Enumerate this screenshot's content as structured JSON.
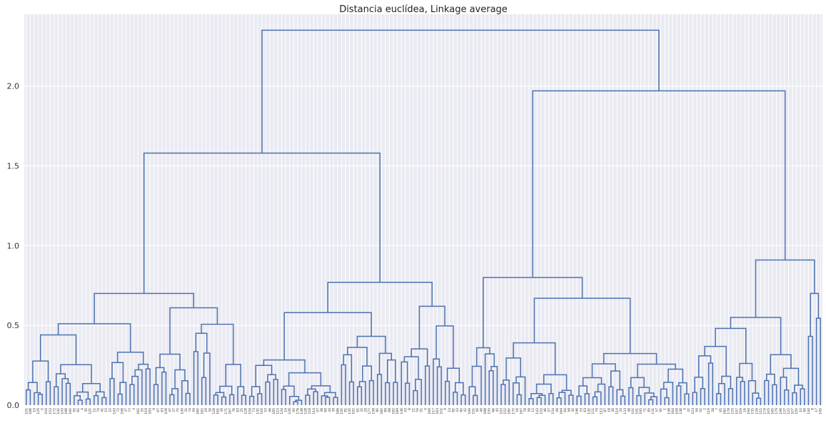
{
  "chart_data": {
    "type": "dendrogram",
    "title": "Distancia euclídea, Linkage average",
    "xlabel": "",
    "ylabel": "",
    "ylim": [
      0,
      2.45
    ],
    "y_ticks": [
      0.0,
      0.5,
      1.0,
      1.5,
      2.0
    ],
    "y_tick_labels": [
      "0.0",
      "0.5",
      "1.0",
      "1.5",
      "2.0"
    ],
    "grid": true,
    "link_color": "#4c72b0",
    "background_color": "#eaeaf2",
    "grid_color": "#ffffff",
    "leaf_count": 200,
    "top_merges": [
      {
        "height": 2.35,
        "label": "root"
      },
      {
        "height": 1.97,
        "label": "right cluster"
      },
      {
        "height": 1.58,
        "label": "left cluster"
      },
      {
        "height": 0.91,
        "label": "far-right subcluster"
      },
      {
        "height": 0.8,
        "label": "middle-right subcluster"
      },
      {
        "height": 0.77,
        "label": "center subcluster"
      },
      {
        "height": 0.7,
        "label": "far-left subcluster"
      }
    ],
    "leaf_labels": [
      "101",
      "186",
      "19",
      "129",
      "0",
      "104",
      "153",
      "172",
      "142",
      "143",
      "188",
      "190",
      "95",
      "82",
      "4",
      "35",
      "120",
      "11",
      "74",
      "41",
      "15",
      "22",
      "143",
      "72",
      "198",
      "37",
      "77",
      "3",
      "162",
      "55",
      "118",
      "183",
      "9",
      "67",
      "63",
      "108",
      "47",
      "27",
      "70",
      "149",
      "31",
      "74",
      "59",
      "160",
      "162",
      "29",
      "34",
      "128",
      "161",
      "39",
      "171",
      "167",
      "76",
      "83",
      "25",
      "128",
      "159",
      "73",
      "130",
      "116",
      "53",
      "96",
      "185",
      "115",
      "134",
      "14",
      "126",
      "95",
      "176",
      "148",
      "128",
      "118",
      "114",
      "97",
      "38",
      "69",
      "44",
      "39",
      "166",
      "150",
      "81",
      "135",
      "192",
      "61",
      "32",
      "29",
      "177",
      "158",
      "80",
      "160",
      "89",
      "68",
      "182",
      "189",
      "136",
      "93",
      "8",
      "21",
      "54",
      "91",
      "5",
      "169",
      "117",
      "163",
      "101",
      "9",
      "14",
      "80",
      "43",
      "60",
      "42",
      "199",
      "151",
      "56",
      "49",
      "188",
      "155",
      "66",
      "45",
      "193",
      "152",
      "180",
      "170",
      "59",
      "167",
      "78",
      "39",
      "12",
      "143",
      "152",
      "46",
      "97",
      "154",
      "98",
      "164",
      "64",
      "58",
      "30",
      "146",
      "33",
      "63",
      "130",
      "121",
      "79",
      "112",
      "87",
      "18",
      "36",
      "114",
      "24",
      "133",
      "48",
      "100",
      "191",
      "195",
      "71",
      "85",
      "131",
      "57",
      "90",
      "1",
      "138",
      "164",
      "108",
      "136",
      "5",
      "20",
      "103",
      "94",
      "92",
      "2",
      "119",
      "28",
      "7",
      "65",
      "160",
      "178",
      "125",
      "197",
      "109",
      "16",
      "194",
      "135",
      "139",
      "111",
      "174",
      "105",
      "165",
      "179",
      "196",
      "137",
      "122",
      "107",
      "150",
      "10",
      "84",
      "144",
      "8",
      "17",
      "145"
    ]
  }
}
